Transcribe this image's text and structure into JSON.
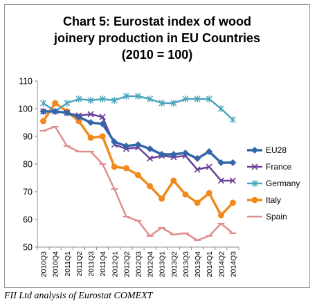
{
  "caption": "FII Ltd analysis of Eurostat COMEXT",
  "chart_data": {
    "type": "line",
    "title_lines": [
      "Chart 5: Eurostat index of wood",
      "joinery production in EU Countries",
      "(2010 = 100)"
    ],
    "xlabel": "",
    "ylabel": "",
    "ylim": [
      50,
      110
    ],
    "yticks": [
      50,
      60,
      70,
      80,
      90,
      100,
      110
    ],
    "grid": false,
    "legend_position": "right",
    "categories": [
      "2010Q3",
      "2010Q4",
      "2011Q1",
      "2011Q2",
      "2011Q3",
      "2011Q4",
      "2012Q1",
      "2012Q2",
      "2012Q3",
      "2012Q4",
      "2013Q1",
      "2013Q2",
      "2013Q3",
      "2013Q4",
      "2014Q1",
      "2014Q2",
      "2014Q3"
    ],
    "x": [
      "2010Q3",
      "2010Q4",
      "2011Q1",
      "2011Q2",
      "2011Q3",
      "2011Q4",
      "2012Q1",
      "2012Q2",
      "2012Q3",
      "2012Q4",
      "2013Q1",
      "2013Q2",
      "2013Q3",
      "2013Q4",
      "2014Q1",
      "2014Q2",
      "2014Q3"
    ],
    "series": [
      {
        "name": "EU28",
        "color": "#3366a8",
        "marker": "diamond",
        "values": [
          99,
          99,
          98.5,
          97,
          95,
          94.5,
          88,
          86.5,
          87,
          85.5,
          83.5,
          83.5,
          84,
          82,
          84.5,
          80.5,
          80.5
        ]
      },
      {
        "name": "France",
        "color": "#6a3f99",
        "marker": "x",
        "values": [
          99,
          99,
          98.5,
          97.5,
          98,
          97,
          87,
          85.5,
          86,
          82,
          83,
          82.5,
          83,
          78,
          79,
          74,
          74
        ]
      },
      {
        "name": "Germany",
        "color": "#4aa4bd",
        "marker": "star",
        "values": [
          102,
          99,
          102,
          103.5,
          103,
          103.5,
          103,
          104.5,
          104.5,
          103.5,
          102,
          102,
          103.5,
          103.5,
          103.5,
          100,
          96
        ]
      },
      {
        "name": "Italy",
        "color": "#f08a1c",
        "marker": "circle",
        "values": [
          95.5,
          102,
          99,
          95.5,
          89.5,
          90,
          79,
          78.5,
          76,
          72,
          67.5,
          74,
          69,
          66,
          69.5,
          61.5,
          66
        ]
      },
      {
        "name": "Spain",
        "color": "#e08e8e",
        "marker": "dash",
        "values": [
          92,
          93.5,
          86.5,
          84.5,
          84.5,
          80,
          71,
          61,
          59.5,
          54,
          57,
          54.5,
          55,
          52.5,
          54,
          58.5,
          55
        ]
      }
    ]
  }
}
